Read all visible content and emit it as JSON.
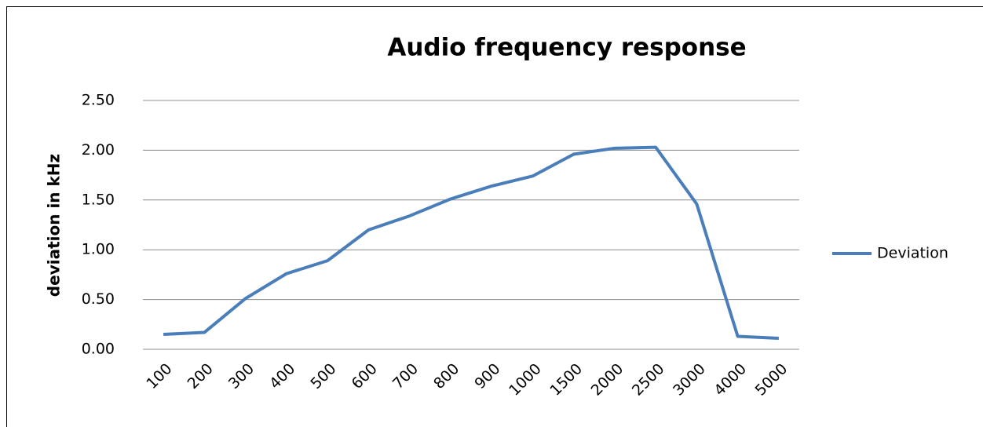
{
  "chart_data": {
    "type": "line",
    "title": "Audio frequency response",
    "y_label": "deviation in kHz",
    "categories": [
      "100",
      "200",
      "300",
      "400",
      "500",
      "600",
      "700",
      "800",
      "900",
      "1000",
      "1500",
      "2000",
      "2500",
      "3000",
      "4000",
      "5000"
    ],
    "series": [
      {
        "name": "Deviation",
        "color": "#4a7ebb",
        "values": [
          0.15,
          0.17,
          0.51,
          0.76,
          0.89,
          1.2,
          1.34,
          1.51,
          1.64,
          1.74,
          1.96,
          2.02,
          2.03,
          1.46,
          0.13,
          0.11
        ]
      }
    ],
    "ylim": [
      0,
      2.5
    ],
    "yticks": [
      {
        "value": 0,
        "label": "0.00"
      },
      {
        "value": 0.5,
        "label": "0.50"
      },
      {
        "value": 1,
        "label": "1.00"
      },
      {
        "value": 1.5,
        "label": "1.50"
      },
      {
        "value": 2,
        "label": "2.00"
      },
      {
        "value": 2.5,
        "label": "2.50"
      }
    ],
    "grid": true,
    "legend": "right"
  }
}
